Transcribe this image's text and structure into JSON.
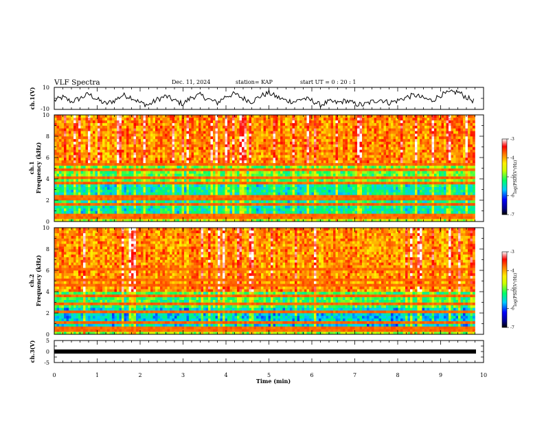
{
  "header": {
    "title": "VLF Spectra",
    "date": "Dec. 11, 2024",
    "station": "station= KAP",
    "start": "start  UT  =   0  : 20 : 1"
  },
  "chart_data": [
    {
      "type": "line",
      "panel": "ch1-waveform",
      "ylabel": "ch.1(V)",
      "ylim": [
        -10,
        10
      ],
      "yticks": [
        {
          "v": 10,
          "label": "10"
        },
        {
          "v": -10,
          "label": "-10"
        }
      ],
      "xlim": [
        0,
        9.83
      ],
      "x": [
        0,
        0.2,
        0.4,
        0.6,
        0.8,
        1.0,
        1.2,
        1.4,
        1.6,
        1.8,
        2.0,
        2.2,
        2.4,
        2.6,
        2.8,
        3.0,
        3.2,
        3.4,
        3.6,
        3.8,
        4.0,
        4.2,
        4.4,
        4.6,
        4.8,
        5.0,
        5.2,
        5.4,
        5.6,
        5.8,
        6.0,
        6.2,
        6.4,
        6.6,
        6.8,
        7.0,
        7.2,
        7.4,
        7.6,
        7.8,
        8.0,
        8.2,
        8.4,
        8.6,
        8.8,
        9.0,
        9.2,
        9.4,
        9.6,
        9.8
      ],
      "y": [
        -2,
        1,
        -3,
        0,
        4,
        -1,
        -5,
        -2,
        3,
        1,
        -4,
        -6,
        -1,
        2,
        -2,
        -5,
        1,
        3,
        -1,
        -4,
        2,
        4,
        0,
        -3,
        2,
        5,
        1,
        -2,
        -3,
        0,
        -2,
        -6,
        -3,
        -4,
        -2,
        -5,
        -6,
        -3,
        -1,
        -4,
        -2,
        1,
        3,
        0,
        -2,
        3,
        5,
        6,
        1,
        -3
      ]
    },
    {
      "type": "heatmap",
      "panel": "ch1-spectrogram",
      "ylabel": "Frequency (kHz)",
      "channel_label": "ch.1",
      "ylim": [
        0,
        10
      ],
      "yticks": [
        0,
        2,
        4,
        6,
        8,
        10
      ],
      "xlim": [
        0,
        10
      ],
      "colorbar": {
        "label": "log(PSD)(V²/Hz)",
        "range": [
          -7,
          -3
        ],
        "ticks": [
          -3,
          -4,
          -5,
          -6,
          -7
        ]
      },
      "bands": [
        {
          "from": 0,
          "to": 0.7,
          "level": -4.7
        },
        {
          "from": 0.7,
          "to": 3.6,
          "level": -5.4
        },
        {
          "from": 3.6,
          "to": 5.2,
          "level": -5.0
        },
        {
          "from": 5.2,
          "to": 10,
          "level": -3.9
        }
      ],
      "lines_khz": [
        0.3,
        0.5,
        1.5,
        2.1,
        2.3,
        3.6,
        4.0,
        4.8,
        5.4
      ]
    },
    {
      "type": "heatmap",
      "panel": "ch2-spectrogram",
      "ylabel": "Frequency (kHz)",
      "channel_label": "ch.2",
      "ylim": [
        0,
        10
      ],
      "yticks": [
        0,
        2,
        4,
        6,
        8,
        10
      ],
      "xlim": [
        0,
        10
      ],
      "colorbar": {
        "label": "log(PSD)(V²/Hz)",
        "range": [
          -7,
          -3
        ],
        "ticks": [
          -3,
          -4,
          -5,
          -6,
          -7
        ]
      },
      "bands": [
        {
          "from": 0,
          "to": 0.7,
          "level": -4.8
        },
        {
          "from": 0.7,
          "to": 2.6,
          "level": -5.6
        },
        {
          "from": 2.6,
          "to": 4.0,
          "level": -5.1
        },
        {
          "from": 4.0,
          "to": 10,
          "level": -3.9
        }
      ],
      "lines_khz": [
        0.3,
        0.6,
        1.2,
        2.0,
        2.8,
        3.5,
        4.6,
        5.2,
        6.1
      ]
    },
    {
      "type": "line",
      "panel": "ch3-waveform",
      "ylabel": "ch.3(V)",
      "ylim": [
        -5,
        5
      ],
      "yticks": [
        {
          "v": 5,
          "label": "5"
        },
        {
          "v": 0,
          "label": "0"
        },
        {
          "v": -5,
          "label": "-5"
        }
      ],
      "xlim": [
        0,
        9.83
      ],
      "level": 0,
      "xlabel": "Time (min)",
      "xticks": [
        0,
        1,
        2,
        3,
        4,
        5,
        6,
        7,
        8,
        9,
        10
      ]
    }
  ]
}
